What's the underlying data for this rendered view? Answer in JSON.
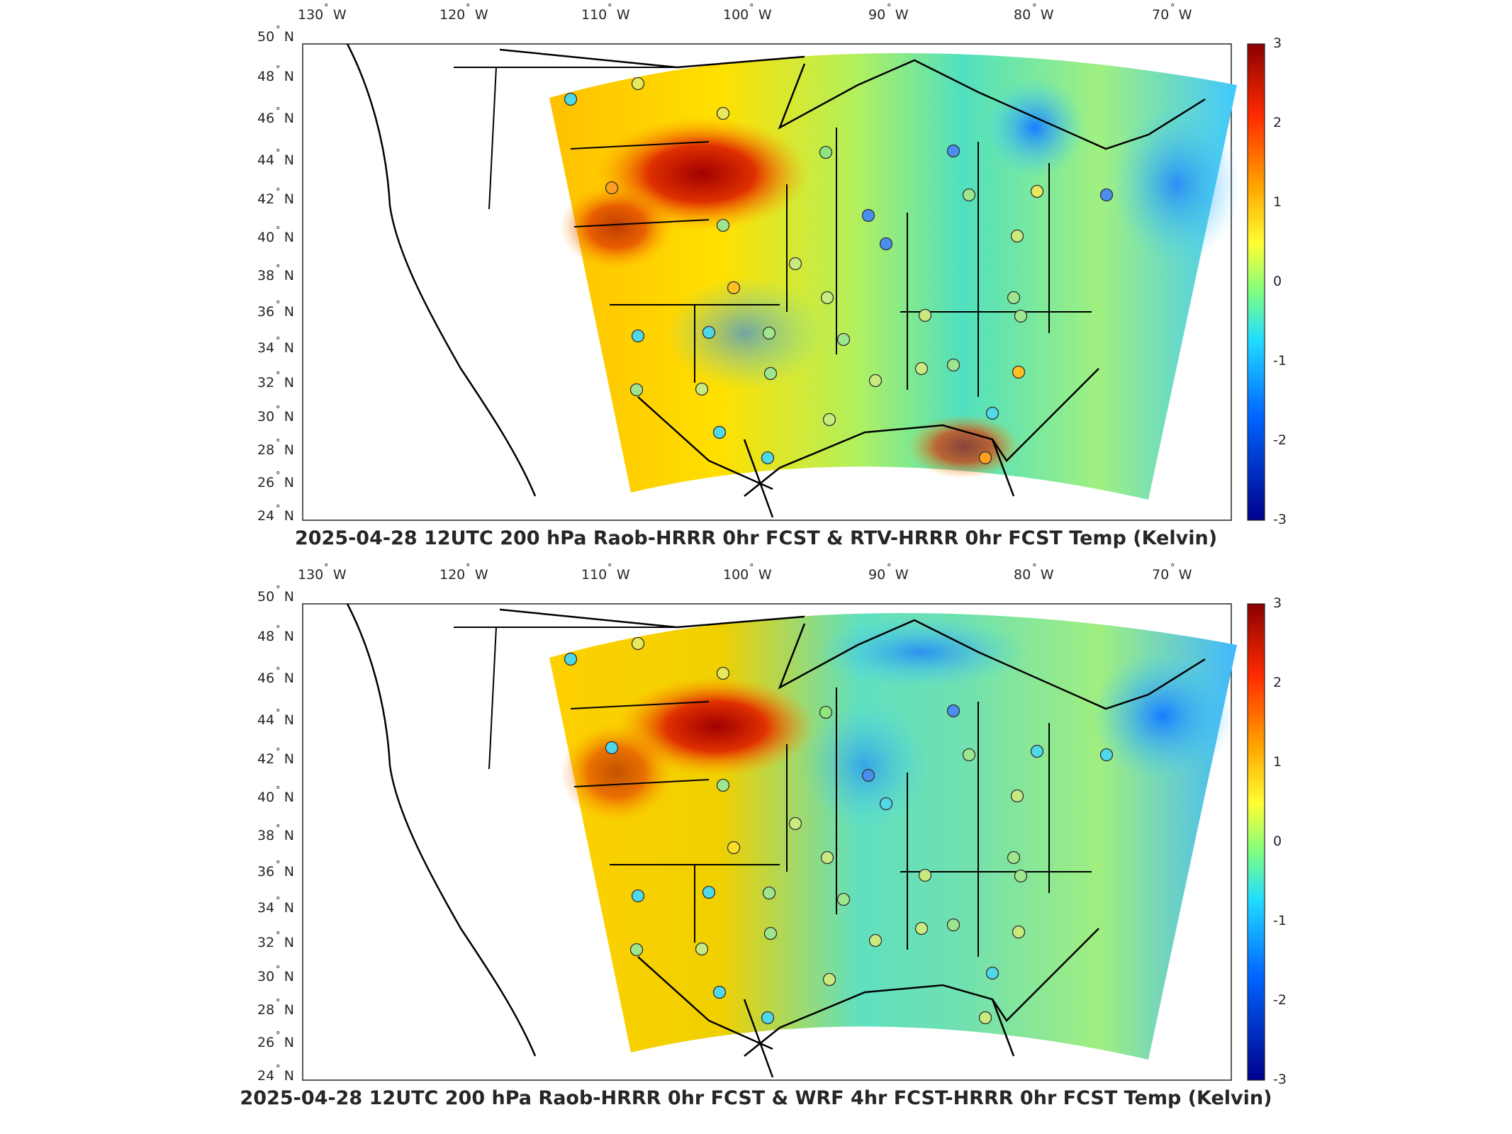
{
  "colorbar": {
    "ticks": [
      "3",
      "2",
      "1",
      "0",
      "-1",
      "-2",
      "-3"
    ],
    "colors": [
      "#8b0000",
      "#ff2a00",
      "#ffa500",
      "#ffff33",
      "#7fff7f",
      "#22ddff",
      "#0066ff",
      "#00008b"
    ]
  },
  "lon_labels": [
    "130",
    "120",
    "110",
    "100",
    "90",
    "80",
    "70"
  ],
  "lon_suffix": "W",
  "lat_labels": [
    "50",
    "48",
    "46",
    "44",
    "42",
    "40",
    "38",
    "36",
    "34",
    "32",
    "30",
    "28",
    "26",
    "24"
  ],
  "lat_suffix": "N",
  "degree_symbol": "°",
  "panels": [
    {
      "title": "2025-04-28 12UTC 200 hPa Raob-HRRR 0hr FCST & RTV-HRRR 0hr FCST Temp (Kelvin)"
    },
    {
      "title": "2025-04-28 12UTC 200 hPa Raob-HRRR 0hr FCST & WRF 4hr FCST-HRRR 0hr FCST Temp (Kelvin)"
    }
  ]
}
